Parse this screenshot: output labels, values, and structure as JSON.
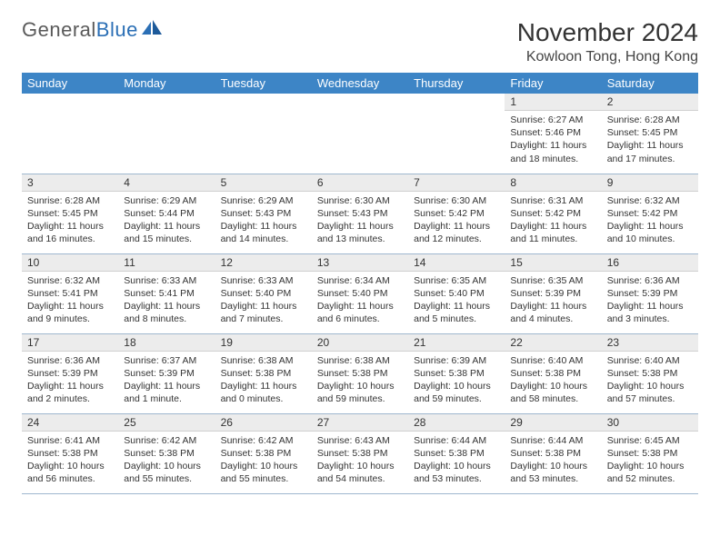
{
  "brand": {
    "name_a": "General",
    "name_b": "Blue"
  },
  "title": "November 2024",
  "location": "Kowloon Tong, Hong Kong",
  "colors": {
    "header_bg": "#3d85c6",
    "header_fg": "#ffffff",
    "daynum_bg": "#ececec",
    "border": "#9fb7cf",
    "brand_blue": "#2b6fb5"
  },
  "weekdays": [
    "Sunday",
    "Monday",
    "Tuesday",
    "Wednesday",
    "Thursday",
    "Friday",
    "Saturday"
  ],
  "weeks": [
    [
      {
        "n": "",
        "sr": "",
        "ss": "",
        "dl": ""
      },
      {
        "n": "",
        "sr": "",
        "ss": "",
        "dl": ""
      },
      {
        "n": "",
        "sr": "",
        "ss": "",
        "dl": ""
      },
      {
        "n": "",
        "sr": "",
        "ss": "",
        "dl": ""
      },
      {
        "n": "",
        "sr": "",
        "ss": "",
        "dl": ""
      },
      {
        "n": "1",
        "sr": "Sunrise: 6:27 AM",
        "ss": "Sunset: 5:46 PM",
        "dl": "Daylight: 11 hours and 18 minutes."
      },
      {
        "n": "2",
        "sr": "Sunrise: 6:28 AM",
        "ss": "Sunset: 5:45 PM",
        "dl": "Daylight: 11 hours and 17 minutes."
      }
    ],
    [
      {
        "n": "3",
        "sr": "Sunrise: 6:28 AM",
        "ss": "Sunset: 5:45 PM",
        "dl": "Daylight: 11 hours and 16 minutes."
      },
      {
        "n": "4",
        "sr": "Sunrise: 6:29 AM",
        "ss": "Sunset: 5:44 PM",
        "dl": "Daylight: 11 hours and 15 minutes."
      },
      {
        "n": "5",
        "sr": "Sunrise: 6:29 AM",
        "ss": "Sunset: 5:43 PM",
        "dl": "Daylight: 11 hours and 14 minutes."
      },
      {
        "n": "6",
        "sr": "Sunrise: 6:30 AM",
        "ss": "Sunset: 5:43 PM",
        "dl": "Daylight: 11 hours and 13 minutes."
      },
      {
        "n": "7",
        "sr": "Sunrise: 6:30 AM",
        "ss": "Sunset: 5:42 PM",
        "dl": "Daylight: 11 hours and 12 minutes."
      },
      {
        "n": "8",
        "sr": "Sunrise: 6:31 AM",
        "ss": "Sunset: 5:42 PM",
        "dl": "Daylight: 11 hours and 11 minutes."
      },
      {
        "n": "9",
        "sr": "Sunrise: 6:32 AM",
        "ss": "Sunset: 5:42 PM",
        "dl": "Daylight: 11 hours and 10 minutes."
      }
    ],
    [
      {
        "n": "10",
        "sr": "Sunrise: 6:32 AM",
        "ss": "Sunset: 5:41 PM",
        "dl": "Daylight: 11 hours and 9 minutes."
      },
      {
        "n": "11",
        "sr": "Sunrise: 6:33 AM",
        "ss": "Sunset: 5:41 PM",
        "dl": "Daylight: 11 hours and 8 minutes."
      },
      {
        "n": "12",
        "sr": "Sunrise: 6:33 AM",
        "ss": "Sunset: 5:40 PM",
        "dl": "Daylight: 11 hours and 7 minutes."
      },
      {
        "n": "13",
        "sr": "Sunrise: 6:34 AM",
        "ss": "Sunset: 5:40 PM",
        "dl": "Daylight: 11 hours and 6 minutes."
      },
      {
        "n": "14",
        "sr": "Sunrise: 6:35 AM",
        "ss": "Sunset: 5:40 PM",
        "dl": "Daylight: 11 hours and 5 minutes."
      },
      {
        "n": "15",
        "sr": "Sunrise: 6:35 AM",
        "ss": "Sunset: 5:39 PM",
        "dl": "Daylight: 11 hours and 4 minutes."
      },
      {
        "n": "16",
        "sr": "Sunrise: 6:36 AM",
        "ss": "Sunset: 5:39 PM",
        "dl": "Daylight: 11 hours and 3 minutes."
      }
    ],
    [
      {
        "n": "17",
        "sr": "Sunrise: 6:36 AM",
        "ss": "Sunset: 5:39 PM",
        "dl": "Daylight: 11 hours and 2 minutes."
      },
      {
        "n": "18",
        "sr": "Sunrise: 6:37 AM",
        "ss": "Sunset: 5:39 PM",
        "dl": "Daylight: 11 hours and 1 minute."
      },
      {
        "n": "19",
        "sr": "Sunrise: 6:38 AM",
        "ss": "Sunset: 5:38 PM",
        "dl": "Daylight: 11 hours and 0 minutes."
      },
      {
        "n": "20",
        "sr": "Sunrise: 6:38 AM",
        "ss": "Sunset: 5:38 PM",
        "dl": "Daylight: 10 hours and 59 minutes."
      },
      {
        "n": "21",
        "sr": "Sunrise: 6:39 AM",
        "ss": "Sunset: 5:38 PM",
        "dl": "Daylight: 10 hours and 59 minutes."
      },
      {
        "n": "22",
        "sr": "Sunrise: 6:40 AM",
        "ss": "Sunset: 5:38 PM",
        "dl": "Daylight: 10 hours and 58 minutes."
      },
      {
        "n": "23",
        "sr": "Sunrise: 6:40 AM",
        "ss": "Sunset: 5:38 PM",
        "dl": "Daylight: 10 hours and 57 minutes."
      }
    ],
    [
      {
        "n": "24",
        "sr": "Sunrise: 6:41 AM",
        "ss": "Sunset: 5:38 PM",
        "dl": "Daylight: 10 hours and 56 minutes."
      },
      {
        "n": "25",
        "sr": "Sunrise: 6:42 AM",
        "ss": "Sunset: 5:38 PM",
        "dl": "Daylight: 10 hours and 55 minutes."
      },
      {
        "n": "26",
        "sr": "Sunrise: 6:42 AM",
        "ss": "Sunset: 5:38 PM",
        "dl": "Daylight: 10 hours and 55 minutes."
      },
      {
        "n": "27",
        "sr": "Sunrise: 6:43 AM",
        "ss": "Sunset: 5:38 PM",
        "dl": "Daylight: 10 hours and 54 minutes."
      },
      {
        "n": "28",
        "sr": "Sunrise: 6:44 AM",
        "ss": "Sunset: 5:38 PM",
        "dl": "Daylight: 10 hours and 53 minutes."
      },
      {
        "n": "29",
        "sr": "Sunrise: 6:44 AM",
        "ss": "Sunset: 5:38 PM",
        "dl": "Daylight: 10 hours and 53 minutes."
      },
      {
        "n": "30",
        "sr": "Sunrise: 6:45 AM",
        "ss": "Sunset: 5:38 PM",
        "dl": "Daylight: 10 hours and 52 minutes."
      }
    ]
  ]
}
